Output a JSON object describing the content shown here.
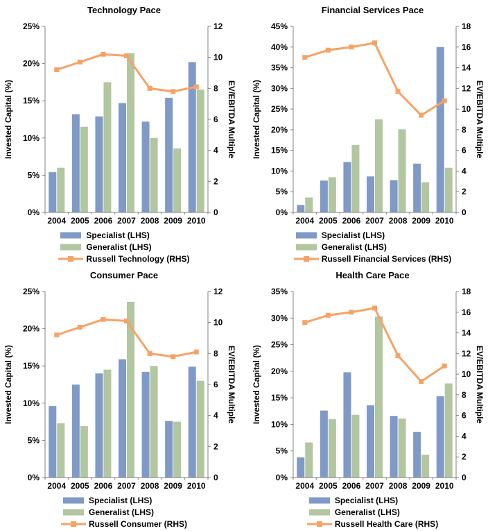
{
  "page": {
    "background": "#ffffff"
  },
  "colors": {
    "specialist": "#7F9AC6",
    "generalist": "#B2C6A0",
    "russell": "#F7A265",
    "axis": "#808080",
    "text": "#000000"
  },
  "chart_data": [
    {
      "type": "bar+line",
      "title": "Technology Pace",
      "ylabel_left": "Invested Capital (%)",
      "ylabel_right": "EV/EBITDA Multiple",
      "categories": [
        "2004",
        "2005",
        "2006",
        "2007",
        "2008",
        "2009",
        "2010"
      ],
      "left_axis": {
        "min": 0,
        "max": 25,
        "step": 5,
        "tick_labels": [
          "0%",
          "5%",
          "10%",
          "15%",
          "20%",
          "25%"
        ]
      },
      "right_axis": {
        "min": 0,
        "max": 12,
        "step": 2,
        "tick_labels": [
          "0",
          "2",
          "4",
          "6",
          "8",
          "10",
          "12"
        ]
      },
      "legend_position": "bottom",
      "grid": false,
      "series": [
        {
          "name": "Specialist (LHS)",
          "kind": "bar",
          "axis": "left",
          "color_key": "specialist",
          "values": [
            5.4,
            13.2,
            12.9,
            14.7,
            12.2,
            15.4,
            20.2
          ]
        },
        {
          "name": "Generalist (LHS)",
          "kind": "bar",
          "axis": "left",
          "color_key": "generalist",
          "values": [
            6.0,
            11.5,
            17.5,
            21.4,
            10.0,
            8.6,
            16.5
          ]
        },
        {
          "name": "Russell Technology (RHS)",
          "kind": "line",
          "axis": "right",
          "color_key": "russell",
          "values": [
            9.2,
            9.7,
            10.2,
            10.1,
            8.0,
            7.8,
            8.1
          ]
        }
      ]
    },
    {
      "type": "bar+line",
      "title": "Financial Services Pace",
      "ylabel_left": "Invested Capital (%)",
      "ylabel_right": "EV/EBITDA Multiple",
      "categories": [
        "2004",
        "2005",
        "2006",
        "2007",
        "2008",
        "2009",
        "2010"
      ],
      "left_axis": {
        "min": 0,
        "max": 45,
        "step": 5,
        "tick_labels": [
          "0%",
          "5%",
          "10%",
          "15%",
          "20%",
          "25%",
          "30%",
          "35%",
          "40%",
          "45%"
        ]
      },
      "right_axis": {
        "min": 0,
        "max": 18,
        "step": 2,
        "tick_labels": [
          "0",
          "2",
          "4",
          "6",
          "8",
          "10",
          "12",
          "14",
          "16",
          "18"
        ]
      },
      "legend_position": "bottom",
      "grid": false,
      "series": [
        {
          "name": "Specialist (LHS)",
          "kind": "bar",
          "axis": "left",
          "color_key": "specialist",
          "values": [
            1.8,
            7.7,
            12.2,
            8.7,
            7.8,
            11.8,
            40.0
          ]
        },
        {
          "name": "Generalist (LHS)",
          "kind": "bar",
          "axis": "left",
          "color_key": "generalist",
          "values": [
            3.6,
            8.5,
            16.3,
            22.5,
            20.1,
            7.3,
            10.8
          ]
        },
        {
          "name": "Russell Financial Services (RHS)",
          "kind": "line",
          "axis": "right",
          "color_key": "russell",
          "values": [
            15.0,
            15.7,
            16.0,
            16.4,
            11.7,
            9.4,
            10.8
          ]
        }
      ]
    },
    {
      "type": "bar+line",
      "title": "Consumer Pace",
      "ylabel_left": "Invested Capital (%)",
      "ylabel_right": "EV/EBITDA Multiple",
      "categories": [
        "2004",
        "2005",
        "2006",
        "2007",
        "2008",
        "2009",
        "2010"
      ],
      "left_axis": {
        "min": 0,
        "max": 25,
        "step": 5,
        "tick_labels": [
          "0%",
          "5%",
          "10%",
          "15%",
          "20%",
          "25%"
        ]
      },
      "right_axis": {
        "min": 0,
        "max": 12,
        "step": 2,
        "tick_labels": [
          "0",
          "2",
          "4",
          "6",
          "8",
          "10",
          "12"
        ]
      },
      "legend_position": "bottom",
      "grid": false,
      "series": [
        {
          "name": "Specialist (LHS)",
          "kind": "bar",
          "axis": "left",
          "color_key": "specialist",
          "values": [
            9.6,
            12.5,
            14.0,
            15.9,
            14.2,
            7.6,
            14.9
          ]
        },
        {
          "name": "Generalist (LHS)",
          "kind": "bar",
          "axis": "left",
          "color_key": "generalist",
          "values": [
            7.3,
            6.9,
            14.5,
            23.6,
            15.0,
            7.5,
            13.0
          ]
        },
        {
          "name": "Russell Consumer (RHS)",
          "kind": "line",
          "axis": "right",
          "color_key": "russell",
          "values": [
            9.2,
            9.7,
            10.2,
            10.1,
            8.0,
            7.8,
            8.1
          ]
        }
      ]
    },
    {
      "type": "bar+line",
      "title": "Health Care Pace",
      "ylabel_left": "Invested Capital (%)",
      "ylabel_right": "EV/EBITDA Multiple",
      "categories": [
        "2004",
        "2005",
        "2006",
        "2007",
        "2008",
        "2009",
        "2010"
      ],
      "left_axis": {
        "min": 0,
        "max": 35,
        "step": 5,
        "tick_labels": [
          "0%",
          "5%",
          "10%",
          "15%",
          "20%",
          "25%",
          "30%",
          "35%"
        ]
      },
      "right_axis": {
        "min": 0,
        "max": 18,
        "step": 2,
        "tick_labels": [
          "0",
          "2",
          "4",
          "6",
          "8",
          "10",
          "12",
          "14",
          "16",
          "18"
        ]
      },
      "legend_position": "bottom",
      "grid": false,
      "series": [
        {
          "name": "Specialist (LHS)",
          "kind": "bar",
          "axis": "left",
          "color_key": "specialist",
          "values": [
            3.8,
            12.6,
            19.8,
            13.6,
            11.6,
            8.6,
            15.3
          ]
        },
        {
          "name": "Generalist (LHS)",
          "kind": "bar",
          "axis": "left",
          "color_key": "generalist",
          "values": [
            6.6,
            11.0,
            11.8,
            30.3,
            11.1,
            4.3,
            17.7
          ]
        },
        {
          "name": "Russell Health Care (RHS)",
          "kind": "line",
          "axis": "right",
          "color_key": "russell",
          "values": [
            15.0,
            15.7,
            16.0,
            16.4,
            11.8,
            9.3,
            10.8
          ]
        }
      ]
    }
  ]
}
